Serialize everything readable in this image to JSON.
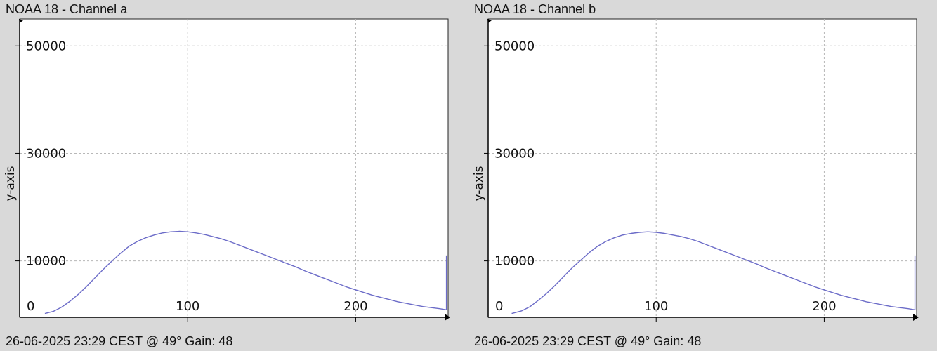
{
  "panels": [
    {
      "title": "NOAA 18 - Channel a",
      "footer": "26-06-2025 23:29 CEST @ 49° Gain: 48"
    },
    {
      "title": "NOAA 18 - Channel b",
      "footer": "26-06-2025 23:29 CEST @ 49° Gain: 48"
    }
  ],
  "chart_data": [
    {
      "type": "line",
      "title": "NOAA 18 - Channel a",
      "xlabel": "",
      "ylabel": "y-axis",
      "xlim": [
        0,
        255
      ],
      "ylim": [
        -500,
        55000
      ],
      "x_ticks": [
        0,
        100,
        200
      ],
      "y_ticks": [
        10000,
        30000,
        50000
      ],
      "grid": true,
      "line_color": "#6c6cc8",
      "series": [
        {
          "x": [
            15,
            20,
            25,
            30,
            35,
            40,
            45,
            50,
            55,
            60,
            65,
            70,
            75,
            80,
            85,
            90,
            95,
            100,
            105,
            110,
            115,
            120,
            125,
            130,
            135,
            140,
            145,
            150,
            155,
            160,
            165,
            170,
            175,
            180,
            185,
            190,
            195,
            200,
            205,
            210,
            215,
            220,
            225,
            230,
            235,
            240,
            245,
            250,
            254,
            254
          ],
          "y": [
            200,
            600,
            1400,
            2500,
            3800,
            5300,
            6900,
            8500,
            10000,
            11400,
            12700,
            13600,
            14300,
            14800,
            15200,
            15400,
            15500,
            15400,
            15200,
            14900,
            14500,
            14100,
            13600,
            13000,
            12400,
            11800,
            11200,
            10600,
            10000,
            9400,
            8800,
            8100,
            7500,
            6900,
            6300,
            5700,
            5100,
            4600,
            4100,
            3600,
            3200,
            2800,
            2400,
            2100,
            1800,
            1500,
            1300,
            1100,
            900,
            11000
          ]
        }
      ]
    },
    {
      "type": "line",
      "title": "NOAA 18 - Channel b",
      "xlabel": "",
      "ylabel": "y-axis",
      "xlim": [
        0,
        255
      ],
      "ylim": [
        -500,
        55000
      ],
      "x_ticks": [
        0,
        100,
        200
      ],
      "y_ticks": [
        10000,
        30000,
        50000
      ],
      "grid": true,
      "line_color": "#6c6cc8",
      "series": [
        {
          "x": [
            14,
            20,
            25,
            30,
            35,
            40,
            45,
            50,
            55,
            60,
            65,
            70,
            75,
            80,
            85,
            90,
            95,
            100,
            105,
            110,
            115,
            120,
            125,
            130,
            135,
            140,
            145,
            150,
            155,
            160,
            165,
            170,
            175,
            180,
            185,
            190,
            195,
            200,
            205,
            210,
            215,
            220,
            225,
            230,
            235,
            240,
            245,
            250,
            254,
            254
          ],
          "y": [
            200,
            700,
            1500,
            2700,
            4000,
            5500,
            7100,
            8700,
            10100,
            11500,
            12700,
            13600,
            14300,
            14800,
            15100,
            15300,
            15400,
            15300,
            15100,
            14800,
            14500,
            14100,
            13600,
            13000,
            12400,
            11800,
            11200,
            10600,
            10000,
            9400,
            8700,
            8100,
            7500,
            6900,
            6300,
            5700,
            5100,
            4600,
            4100,
            3600,
            3200,
            2800,
            2400,
            2100,
            1800,
            1500,
            1300,
            1100,
            900,
            11000
          ]
        }
      ]
    }
  ]
}
